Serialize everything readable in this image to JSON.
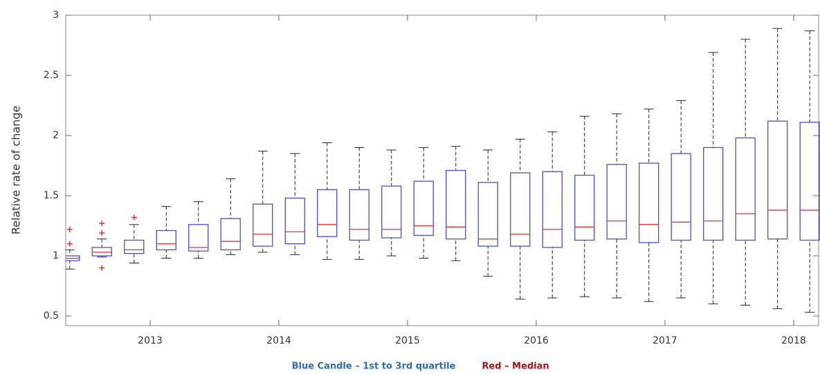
{
  "chart_data": {
    "type": "box",
    "y_label": "Relative rate of change",
    "annotations": [
      {
        "text": "Blue Candle – 1st to 3rd quartile",
        "color": "#2e6db4"
      },
      {
        "text": "Red – Median",
        "color": "#b01010"
      }
    ],
    "x": [
      2012.375,
      2012.625,
      2012.875,
      2013.125,
      2013.375,
      2013.625,
      2013.875,
      2014.125,
      2014.375,
      2014.625,
      2014.875,
      2015.125,
      2015.375,
      2015.625,
      2015.875,
      2016.125,
      2016.375,
      2016.625,
      2016.875,
      2017.125,
      2017.375,
      2017.625,
      2017.875,
      2018.125
    ],
    "low": [
      0.89,
      0.99,
      0.94,
      0.98,
      0.98,
      1.01,
      1.03,
      1.01,
      0.97,
      0.97,
      1.0,
      0.98,
      0.96,
      0.83,
      0.64,
      0.65,
      0.66,
      0.65,
      0.62,
      0.65,
      0.6,
      0.59,
      0.56,
      0.53
    ],
    "q1": [
      0.96,
      1.0,
      1.02,
      1.05,
      1.04,
      1.05,
      1.08,
      1.1,
      1.16,
      1.13,
      1.15,
      1.17,
      1.14,
      1.08,
      1.08,
      1.07,
      1.13,
      1.14,
      1.11,
      1.13,
      1.13,
      1.13,
      1.14,
      1.13
    ],
    "median": [
      0.98,
      1.03,
      1.05,
      1.1,
      1.07,
      1.12,
      1.18,
      1.2,
      1.26,
      1.22,
      1.22,
      1.25,
      1.24,
      1.14,
      1.18,
      1.22,
      1.24,
      1.29,
      1.26,
      1.28,
      1.29,
      1.35,
      1.38,
      1.38
    ],
    "q3": [
      1.0,
      1.07,
      1.13,
      1.21,
      1.26,
      1.31,
      1.43,
      1.48,
      1.55,
      1.55,
      1.58,
      1.62,
      1.71,
      1.61,
      1.69,
      1.7,
      1.67,
      1.76,
      1.77,
      1.85,
      1.9,
      1.98,
      2.12,
      2.11
    ],
    "high": [
      1.05,
      1.14,
      1.26,
      1.41,
      1.45,
      1.64,
      1.87,
      1.85,
      1.94,
      1.9,
      1.88,
      1.9,
      1.91,
      1.88,
      1.97,
      2.03,
      2.16,
      2.18,
      2.22,
      2.29,
      2.69,
      2.8,
      2.89,
      2.87
    ],
    "outliers": [
      [
        1.22,
        1.1
      ],
      [
        1.27,
        1.19,
        0.9
      ],
      [
        1.32
      ],
      [],
      [],
      [],
      [],
      [],
      [],
      [],
      [],
      [],
      [],
      [],
      [],
      [],
      [],
      [],
      [],
      [],
      [],
      [],
      [],
      []
    ],
    "box_color": "#4a4ae8",
    "median_color": "#e83030",
    "whisker_color": "#222222",
    "outlier_color": "#e83030",
    "xlim": [
      2012.344,
      2018.194
    ],
    "xticks": [
      2013,
      2014,
      2015,
      2016,
      2017,
      2018
    ],
    "ylim": [
      0.42,
      3
    ],
    "yticks": [
      0.5,
      1,
      1.5,
      2,
      2.5,
      3
    ],
    "grid": false
  }
}
